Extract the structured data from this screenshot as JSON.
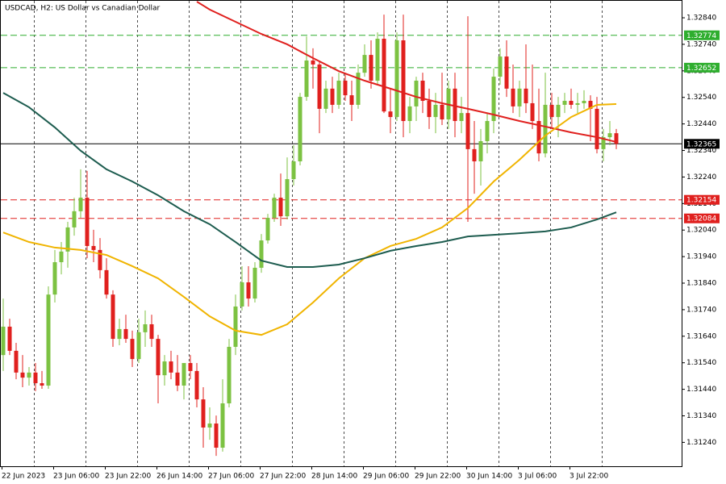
{
  "chart_data": {
    "type": "candlestick",
    "title": "USDCAD, H2:  US Dollar vs Canadian Dollar",
    "categories": [
      "22 Jun 2023",
      null,
      null,
      null,
      null,
      null,
      null,
      null,
      "23 Jun 06:00",
      null,
      null,
      null,
      null,
      null,
      null,
      null,
      "23 Jun 22:00",
      null,
      null,
      null,
      null,
      null,
      null,
      null,
      "26 Jun 14:00",
      null,
      null,
      null,
      null,
      null,
      null,
      null,
      "27 Jun 06:00",
      null,
      null,
      null,
      null,
      null,
      null,
      null,
      "27 Jun 22:00",
      null,
      null,
      null,
      null,
      null,
      null,
      null,
      "28 Jun 14:00",
      null,
      null,
      null,
      null,
      null,
      null,
      null,
      "29 Jun 06:00",
      null,
      null,
      null,
      null,
      null,
      null,
      null,
      "29 Jun 22:00",
      null,
      null,
      null,
      null,
      null,
      null,
      null,
      "30 Jun 14:00",
      null,
      null,
      null,
      null,
      null,
      null,
      null,
      "3 Jul 06:00",
      null,
      null,
      null,
      null,
      null,
      null,
      null,
      "3 Jul 22:00",
      null,
      null,
      null,
      null,
      null,
      null,
      null
    ],
    "open": [
      1.31569,
      1.31676,
      1.31585,
      1.31503,
      1.31484,
      1.31503,
      1.31463,
      1.31454,
      1.31797,
      1.31919,
      1.31959,
      1.3205,
      1.32111,
      1.32162,
      1.3198,
      1.31965,
      1.31889,
      1.31797,
      1.3163,
      1.31667,
      1.3163,
      1.31554,
      1.31655,
      1.31685,
      1.3163,
      1.31493,
      1.31545,
      1.31503,
      1.31454,
      1.31539,
      1.31509,
      1.31402,
      1.31296,
      1.31311,
      1.3122,
      1.31387,
      1.316,
      1.31752,
      1.31843,
      1.31782,
      1.31898,
      1.32001,
      1.32086,
      1.32162,
      1.32092,
      1.32232,
      1.32299,
      1.32542,
      1.32679,
      1.32664,
      1.32497,
      1.32573,
      1.32512,
      1.32603,
      1.32548,
      1.32512,
      1.32633,
      1.327,
      1.32603,
      1.32761,
      1.32487,
      1.32466,
      1.32755,
      1.32451,
      1.32506,
      1.32603,
      1.32527,
      1.32466,
      1.32512,
      1.32457,
      1.32573,
      1.32451,
      1.32481,
      1.32345,
      1.32299,
      1.32375,
      1.32451,
      1.32618,
      1.32694,
      1.32573,
      1.32506,
      1.32573,
      1.32518,
      1.32451,
      1.32329,
      1.32512,
      1.32466,
      1.32512,
      1.32527,
      1.32512,
      1.32518,
      1.32527,
      1.32497,
      1.32345,
      1.3239,
      1.32405
    ],
    "high": [
      1.31782,
      1.31706,
      1.31615,
      1.31569,
      1.31524,
      1.31539,
      1.31509,
      1.31828,
      1.31965,
      1.31995,
      1.32071,
      1.32162,
      1.32269,
      1.32263,
      1.32041,
      1.3201,
      1.31934,
      1.31813,
      1.31706,
      1.31721,
      1.31661,
      1.31706,
      1.31737,
      1.31721,
      1.31645,
      1.31569,
      1.31585,
      1.31569,
      1.31524,
      1.31569,
      1.31539,
      1.31448,
      1.31372,
      1.31341,
      1.31478,
      1.3163,
      1.31797,
      1.31904,
      1.31904,
      1.31919,
      1.32025,
      1.32101,
      1.32177,
      1.32253,
      1.32314,
      1.3236,
      1.32557,
      1.3277,
      1.32725,
      1.32679,
      1.32603,
      1.32618,
      1.32633,
      1.32633,
      1.32603,
      1.32664,
      1.3274,
      1.32755,
      1.32785,
      1.32852,
      1.32573,
      1.32785,
      1.32852,
      1.32542,
      1.32618,
      1.32633,
      1.32573,
      1.32557,
      1.32633,
      1.32603,
      1.32633,
      1.32542,
      1.32846,
      1.32451,
      1.32421,
      1.32481,
      1.32649,
      1.32725,
      1.32755,
      1.32664,
      1.32603,
      1.3274,
      1.32664,
      1.32573,
      1.32633,
      1.32557,
      1.32542,
      1.32557,
      1.32573,
      1.32557,
      1.32567,
      1.32548,
      1.32542,
      1.32421,
      1.32451,
      1.32421
    ],
    "low": [
      1.31509,
      1.31569,
      1.31478,
      1.31448,
      1.31454,
      1.31433,
      1.31442,
      1.31442,
      1.31767,
      1.31873,
      1.31898,
      1.32019,
      1.32086,
      1.31934,
      1.31919,
      1.31858,
      1.31782,
      1.316,
      1.31606,
      1.31615,
      1.31524,
      1.31539,
      1.316,
      1.316,
      1.31387,
      1.31454,
      1.31478,
      1.31433,
      1.31402,
      1.31478,
      1.31372,
      1.3122,
      1.3125,
      1.31189,
      1.31205,
      1.31372,
      1.31569,
      1.31737,
      1.31752,
      1.31767,
      1.31879,
      1.31989,
      1.32071,
      1.32056,
      1.3208,
      1.32208,
      1.32284,
      1.32527,
      1.32573,
      1.32405,
      1.32481,
      1.32481,
      1.32497,
      1.32527,
      1.32451,
      1.32497,
      1.32618,
      1.32573,
      1.32588,
      1.32481,
      1.32405,
      1.32451,
      1.3239,
      1.32405,
      1.32451,
      1.32481,
      1.32421,
      1.32405,
      1.32436,
      1.32421,
      1.3239,
      1.32405,
      1.32071,
      1.32177,
      1.32208,
      1.32329,
      1.32405,
      1.32588,
      1.32542,
      1.32481,
      1.32466,
      1.32481,
      1.32421,
      1.32299,
      1.32314,
      1.32421,
      1.3239,
      1.32481,
      1.32497,
      1.32481,
      1.32497,
      1.32375,
      1.32329,
      1.32299,
      1.3236,
      1.32345
    ],
    "close": [
      1.31676,
      1.31585,
      1.31503,
      1.31484,
      1.31503,
      1.31463,
      1.31454,
      1.31797,
      1.31919,
      1.31959,
      1.3205,
      1.32111,
      1.32162,
      1.3198,
      1.31965,
      1.31889,
      1.31797,
      1.3163,
      1.31667,
      1.3163,
      1.31554,
      1.31655,
      1.31685,
      1.3163,
      1.31493,
      1.31545,
      1.31503,
      1.31454,
      1.31539,
      1.31509,
      1.31402,
      1.31296,
      1.31311,
      1.3122,
      1.31387,
      1.316,
      1.31752,
      1.31843,
      1.31782,
      1.31898,
      1.32001,
      1.32086,
      1.32162,
      1.32092,
      1.32232,
      1.32299,
      1.32542,
      1.32679,
      1.32664,
      1.32497,
      1.32573,
      1.32512,
      1.32603,
      1.32548,
      1.32512,
      1.32633,
      1.327,
      1.32603,
      1.32761,
      1.32487,
      1.32466,
      1.32755,
      1.32451,
      1.32506,
      1.32603,
      1.32527,
      1.32466,
      1.32512,
      1.32457,
      1.32573,
      1.32451,
      1.32481,
      1.32345,
      1.32299,
      1.32375,
      1.32451,
      1.32618,
      1.32694,
      1.32573,
      1.32506,
      1.32573,
      1.32518,
      1.32451,
      1.32329,
      1.32512,
      1.32466,
      1.32512,
      1.32527,
      1.32512,
      1.32518,
      1.32527,
      1.32497,
      1.32345,
      1.3239,
      1.32405,
      1.32365
    ],
    "up_color": "#7cc242",
    "down_color": "#e0201e",
    "overlays": [
      {
        "color": "#e0201e",
        "x": [
          30,
          32,
          36,
          40,
          44,
          48,
          52,
          56,
          60,
          64,
          68,
          72,
          76,
          80,
          84,
          88,
          92,
          95
        ],
        "values": [
          1.32901,
          1.32871,
          1.32825,
          1.32779,
          1.3274,
          1.32688,
          1.32639,
          1.32603,
          1.32573,
          1.32542,
          1.32518,
          1.32497,
          1.32475,
          1.32451,
          1.3243,
          1.32408,
          1.3239,
          1.32372
        ]
      },
      {
        "color": "#f0b400",
        "x": [
          0,
          4,
          8,
          12,
          16,
          20,
          24,
          28,
          32,
          36,
          40,
          44,
          48,
          52,
          56,
          60,
          64,
          68,
          72,
          76,
          80,
          84,
          88,
          92,
          95
        ],
        "values": [
          1.32031,
          1.31995,
          1.31974,
          1.31965,
          1.31946,
          1.31904,
          1.31858,
          1.31788,
          1.31715,
          1.31661,
          1.31645,
          1.31685,
          1.31767,
          1.31858,
          1.31934,
          1.3198,
          1.32007,
          1.3205,
          1.32123,
          1.32223,
          1.32305,
          1.32396,
          1.32466,
          1.32512,
          1.32515
        ]
      },
      {
        "color": "#1d5c4f",
        "x": [
          0,
          4,
          8,
          12,
          16,
          20,
          24,
          28,
          32,
          36,
          40,
          44,
          48,
          52,
          56,
          60,
          64,
          68,
          72,
          76,
          80,
          84,
          88,
          92,
          95
        ],
        "values": [
          1.32557,
          1.32503,
          1.32427,
          1.32339,
          1.32269,
          1.32223,
          1.32171,
          1.32111,
          1.32062,
          1.31995,
          1.31925,
          1.31901,
          1.31901,
          1.3191,
          1.31934,
          1.31962,
          1.3198,
          1.31995,
          1.32016,
          1.32022,
          1.32028,
          1.32035,
          1.3205,
          1.3208,
          1.32107
        ]
      }
    ],
    "levels": [
      {
        "value": 1.32774,
        "color": "#2fae2f",
        "style": "dashed"
      },
      {
        "value": 1.32652,
        "color": "#2fae2f",
        "style": "dashed"
      },
      {
        "value": 1.32154,
        "color": "#e0201e",
        "style": "dashed"
      },
      {
        "value": 1.32084,
        "color": "#e0201e",
        "style": "dashed"
      },
      {
        "value": 1.32365,
        "color": "#000000",
        "style": "solid"
      }
    ],
    "ylim": [
      1.3115,
      1.32907
    ],
    "yticks": [
      {
        "value": 1.3284,
        "label": "1.32840"
      },
      {
        "value": 1.3274,
        "label": "1.32740"
      },
      {
        "value": 1.3264,
        "label": "1.32640"
      },
      {
        "value": 1.3254,
        "label": "1.32540"
      },
      {
        "value": 1.3244,
        "label": "1.32440"
      },
      {
        "value": 1.3234,
        "label": "1.32340"
      },
      {
        "value": 1.3224,
        "label": "1.32240"
      },
      {
        "value": 1.3214,
        "label": "1.32140"
      },
      {
        "value": 1.3204,
        "label": "1.32040"
      },
      {
        "value": 1.3194,
        "label": "1.31940"
      },
      {
        "value": 1.3184,
        "label": "1.31840"
      },
      {
        "value": 1.3174,
        "label": "1.31740"
      },
      {
        "value": 1.3164,
        "label": "1.31640"
      },
      {
        "value": 1.3154,
        "label": "1.31540"
      },
      {
        "value": 1.3144,
        "label": "1.31440"
      },
      {
        "value": 1.3134,
        "label": "1.31340"
      },
      {
        "value": 1.3124,
        "label": "1.31240"
      }
    ]
  }
}
